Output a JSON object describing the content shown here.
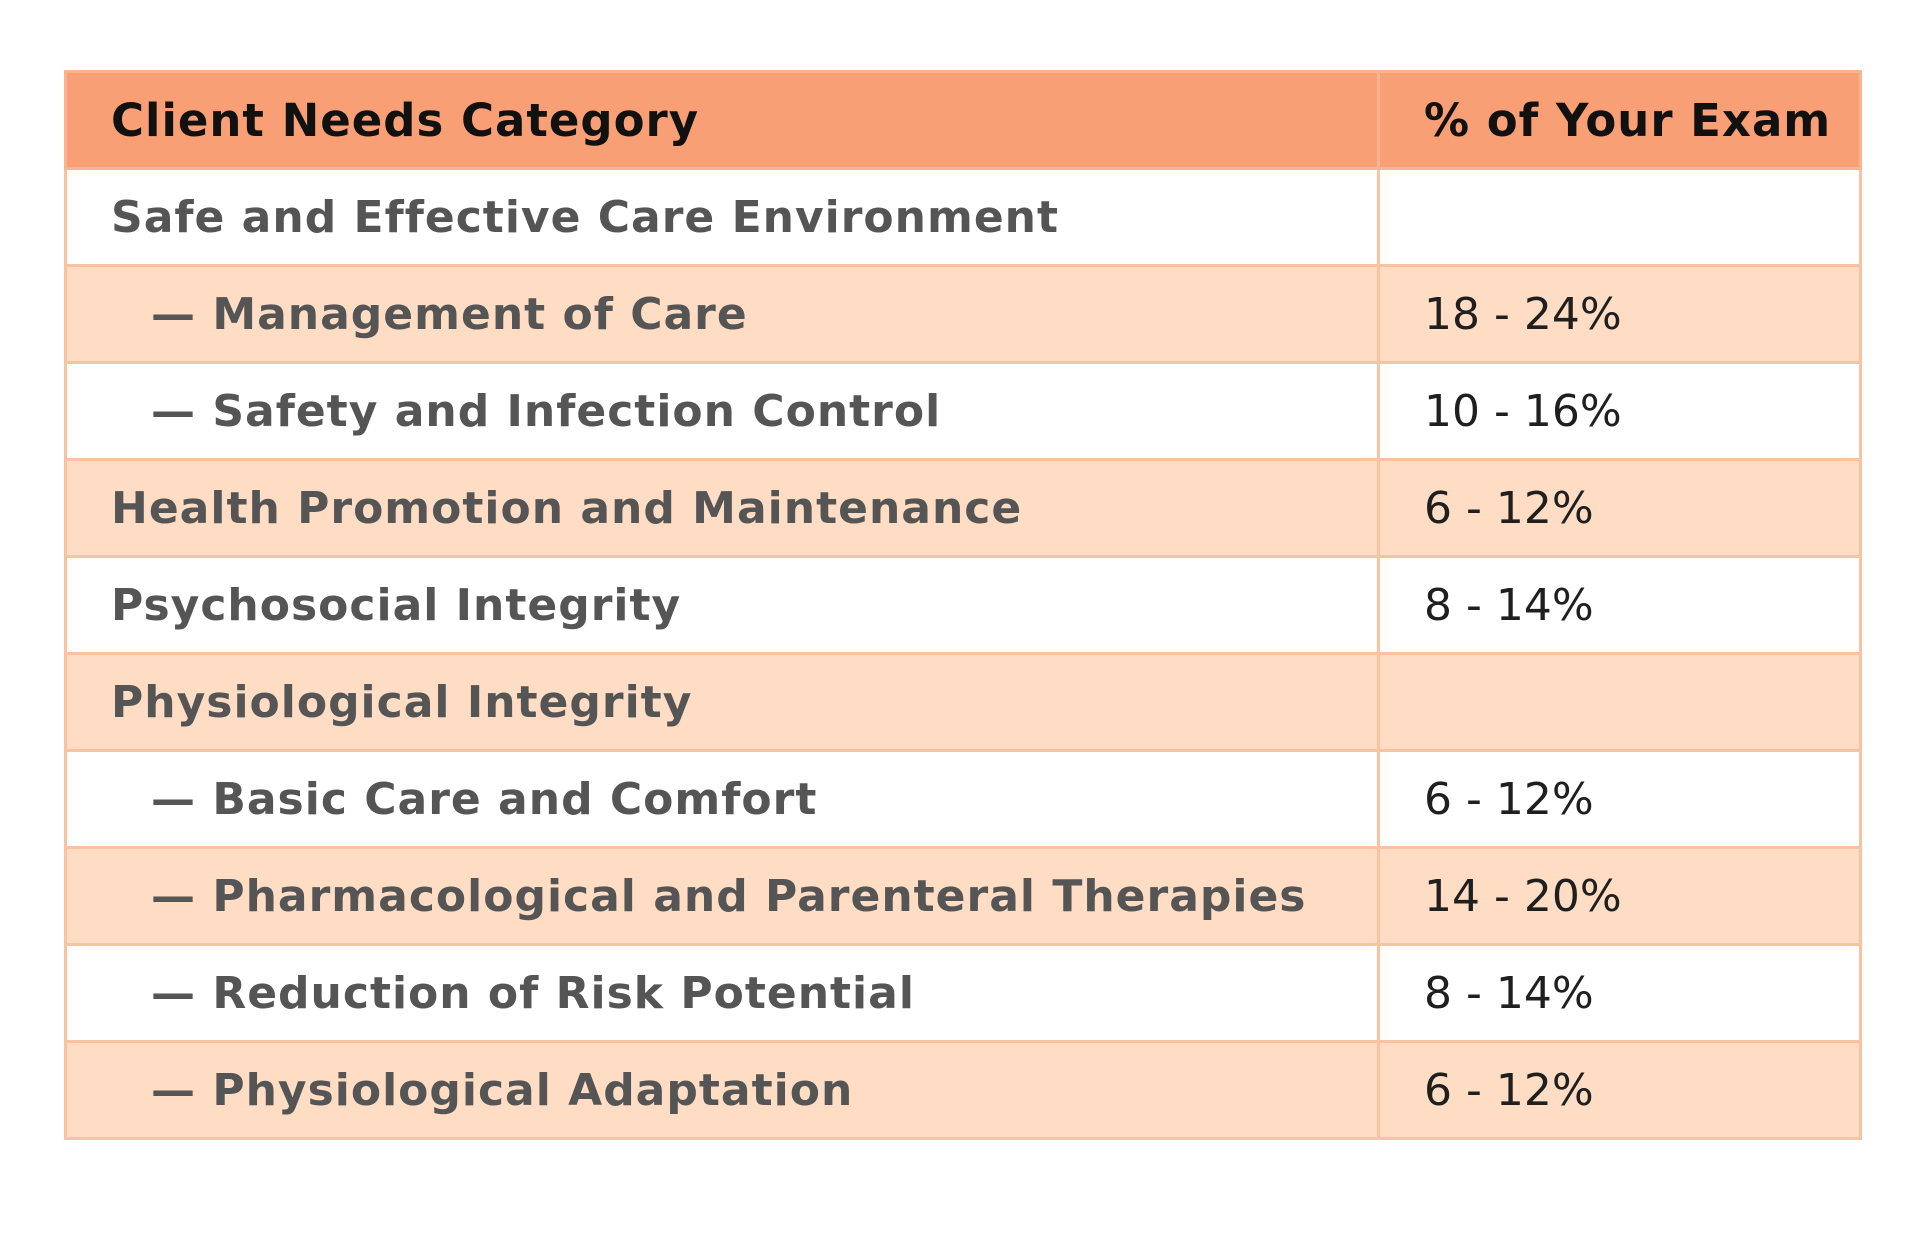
{
  "table": {
    "headers": [
      "Client Needs Category",
      "% of Your Exam"
    ],
    "rows": [
      {
        "category": "Safe and Effective Care Environment",
        "percent": ""
      },
      {
        "category": "— Management of Care",
        "percent": "18 - 24%"
      },
      {
        "category": "— Safety and Infection Control",
        "percent": "10 - 16%"
      },
      {
        "category": "Health Promotion and Maintenance",
        "percent": "6 - 12%"
      },
      {
        "category": "Psychosocial Integrity",
        "percent": "8 - 14%"
      },
      {
        "category": "Physiological Integrity",
        "percent": ""
      },
      {
        "category": "— Basic Care and Comfort",
        "percent": "6 - 12%"
      },
      {
        "category": "— Pharmacological and Parenteral Therapies",
        "percent": "14 - 20%"
      },
      {
        "category": "— Reduction of Risk Potential",
        "percent": "8 - 14%"
      },
      {
        "category": "— Physiological Adaptation",
        "percent": "6 - 12%"
      }
    ]
  },
  "colors": {
    "header_bg": "#f99f76",
    "stripe_bg": "#ffdcc4",
    "border": "#f9c3a1"
  }
}
